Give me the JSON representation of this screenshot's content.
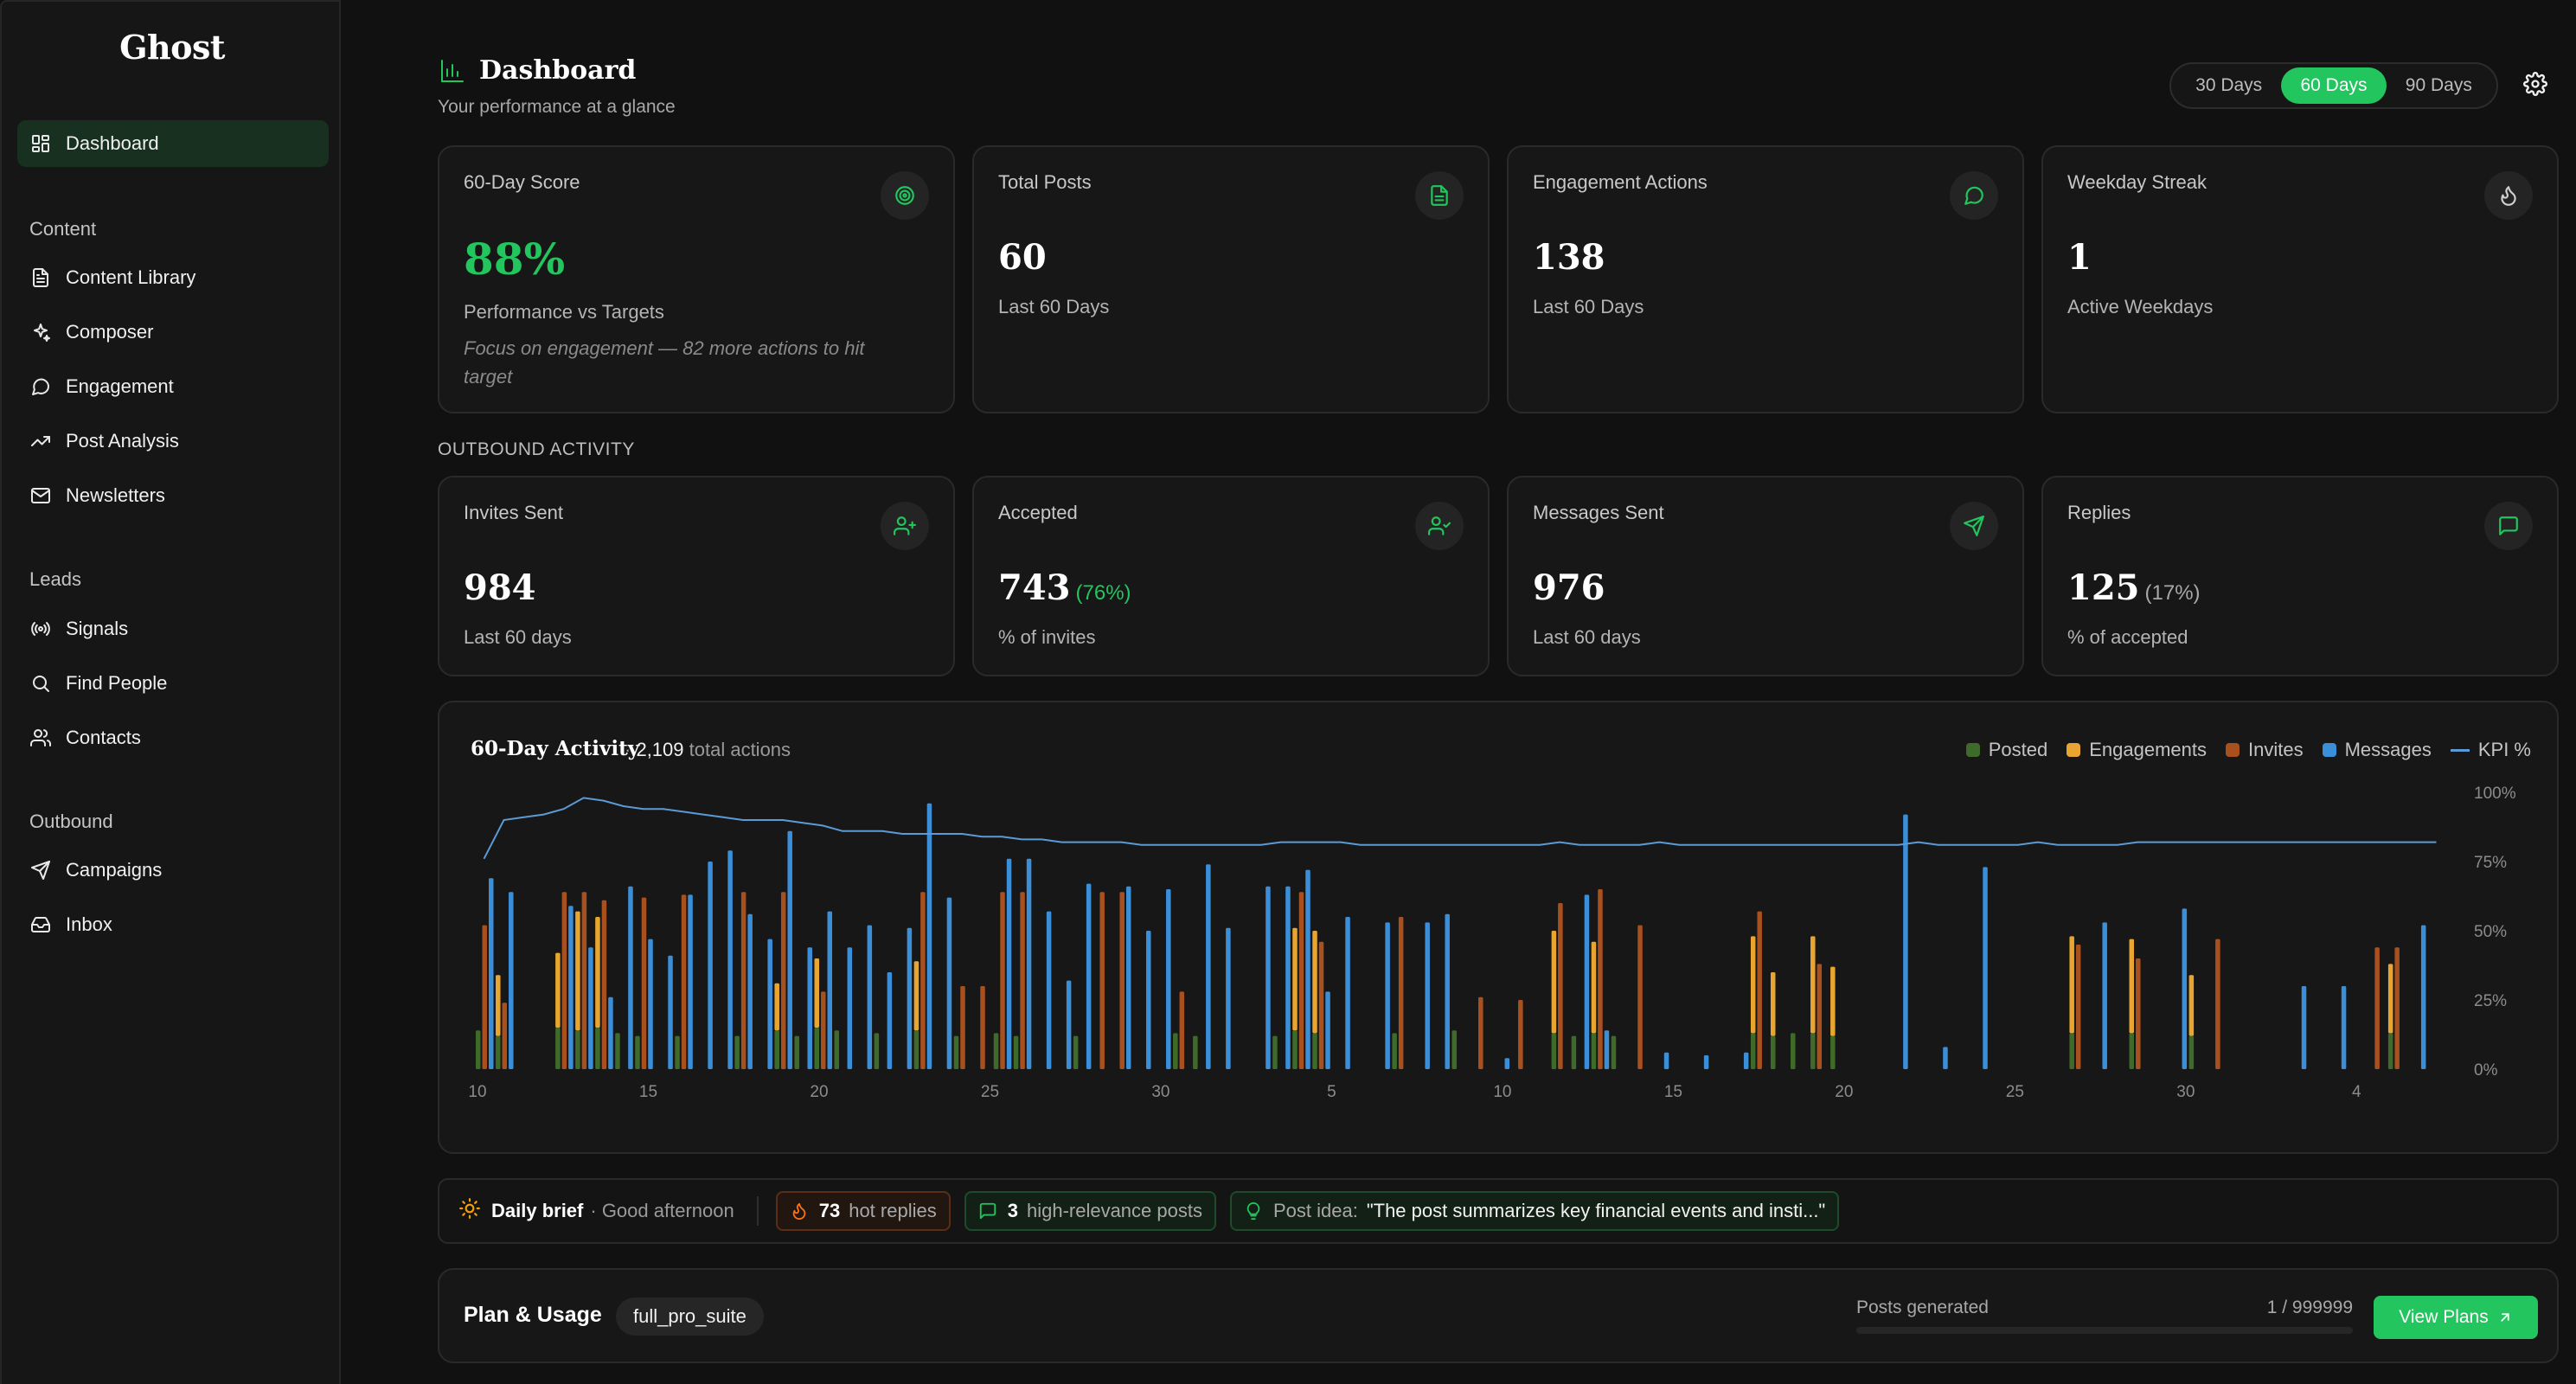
{
  "sidebar": {
    "brand": "Ghost",
    "dashboard": "Dashboard",
    "sections": {
      "content": "Content",
      "leads": "Leads",
      "outbound": "Outbound"
    },
    "content_items": [
      "Content Library",
      "Composer",
      "Engagement",
      "Post Analysis",
      "Newsletters"
    ],
    "leads_items": [
      "Signals",
      "Find People",
      "Contacts"
    ],
    "outbound_items": [
      "Campaigns",
      "Inbox"
    ]
  },
  "header": {
    "title": "Dashboard",
    "subtitle": "Your performance at a glance",
    "ranges": [
      "30 Days",
      "60 Days",
      "90 Days"
    ],
    "active_range": "60 Days"
  },
  "stats": [
    {
      "label": "60-Day Score",
      "value": "88%",
      "sub": "Performance vs Targets",
      "note": "Focus on engagement — 82 more actions to hit target",
      "icon": "target-icon"
    },
    {
      "label": "Total Posts",
      "value": "60",
      "sub": "Last 60 Days",
      "icon": "document-icon"
    },
    {
      "label": "Engagement Actions",
      "value": "138",
      "sub": "Last 60 Days",
      "icon": "message-circle-icon"
    },
    {
      "label": "Weekday Streak",
      "value": "1",
      "sub": "Active Weekdays",
      "icon": "flame-icon"
    }
  ],
  "outbound": {
    "section_label": "OUTBOUND ACTIVITY",
    "cards": [
      {
        "label": "Invites Sent",
        "value": "984",
        "pct": "",
        "sub": "Last 60 days",
        "icon": "user-plus-icon"
      },
      {
        "label": "Accepted",
        "value": "743",
        "pct": "(76%)",
        "sub": "% of invites",
        "icon": "user-check-icon"
      },
      {
        "label": "Messages Sent",
        "value": "976",
        "pct": "",
        "sub": "Last 60 days",
        "icon": "send-icon"
      },
      {
        "label": "Replies",
        "value": "125",
        "pct": "(17%)",
        "sub": "% of accepted",
        "icon": "message-square-icon"
      }
    ]
  },
  "chart_meta": {
    "total_value": "2,109",
    "total_suffix": "total actions"
  },
  "chart_data": {
    "type": "bar",
    "title": "60-Day Activity",
    "colors": {
      "Posted": "#3f6b2a",
      "Engagements": "#e8a530",
      "Invites": "#a8501e",
      "Messages": "#3b8fd9",
      "KPI %": "#5b9bd5"
    },
    "x_tick_labels": [
      "10",
      "15",
      "20",
      "25",
      "30",
      "5",
      "10",
      "15",
      "20",
      "25",
      "30",
      "4"
    ],
    "y2_ticks": [
      "100%",
      "75%",
      "50%",
      "25%",
      "0%"
    ],
    "y2lim": [
      0,
      100
    ],
    "ylim": [
      0,
      100
    ],
    "legend": [
      "Posted",
      "Engagements",
      "Invites",
      "Messages",
      "KPI %"
    ],
    "legend_position": "top-right",
    "series": [
      {
        "name": "Posted",
        "values": [
          14,
          12,
          0,
          0,
          15,
          14,
          15,
          13,
          12,
          0,
          12,
          0,
          0,
          12,
          0,
          14,
          12,
          15,
          14,
          0,
          13,
          0,
          14,
          0,
          12,
          0,
          13,
          12,
          0,
          0,
          0,
          0,
          0,
          0,
          0,
          0,
          0,
          0,
          0,
          0,
          0,
          0,
          0,
          0,
          0,
          0,
          0,
          0,
          0,
          0,
          0,
          0,
          0,
          0,
          0,
          0,
          0,
          0,
          0,
          0,
          0,
          0,
          0,
          0,
          0,
          0,
          0,
          0,
          0,
          0,
          0,
          0,
          0,
          0,
          0,
          0,
          0,
          0,
          0,
          0,
          0,
          0,
          0,
          0,
          0,
          0,
          0,
          0,
          0,
          0,
          0,
          0,
          0,
          0,
          0,
          0,
          0,
          0,
          0
        ]
      },
      {
        "name": "Engagements",
        "values": [
          0,
          22,
          0,
          0,
          27,
          43,
          40,
          0,
          0,
          0,
          10,
          0,
          0,
          0,
          0,
          0,
          0,
          25,
          0,
          0,
          0,
          0,
          25,
          0,
          0,
          0,
          25,
          0,
          0,
          0,
          0,
          0,
          0,
          0,
          0,
          0,
          0,
          0,
          0,
          0,
          0,
          0,
          0,
          0,
          0,
          0,
          0,
          0,
          0,
          0,
          0,
          0,
          0,
          0,
          0,
          0,
          0,
          0,
          0,
          0,
          0,
          0,
          0,
          0,
          0,
          0,
          0,
          0,
          0,
          0,
          0,
          0,
          0,
          0,
          0,
          0,
          0,
          0,
          0,
          0,
          0,
          0,
          0,
          0,
          0,
          0,
          0,
          0,
          0,
          0,
          0,
          0,
          0,
          0,
          0,
          0,
          0,
          0,
          0
        ]
      },
      {
        "name": "Invites",
        "values": [
          52,
          24,
          0,
          0,
          64,
          64,
          61,
          0,
          62,
          0,
          63,
          0,
          0,
          64,
          0,
          64,
          0,
          28,
          0,
          0,
          0,
          0,
          0,
          0,
          0,
          0,
          0,
          0,
          0,
          0,
          0,
          0,
          0,
          0,
          0,
          0,
          0,
          0,
          0,
          0,
          0,
          0,
          0,
          0,
          0,
          0,
          0,
          0,
          0,
          0,
          0,
          0,
          0,
          0,
          0,
          0,
          0,
          0,
          0,
          0,
          0,
          0,
          0,
          0,
          0,
          0,
          0,
          0,
          0,
          0,
          0,
          0,
          0,
          0,
          0,
          0,
          0,
          0,
          0,
          0,
          0,
          0,
          0,
          0,
          0,
          0,
          0,
          0,
          0,
          0,
          0,
          0,
          0,
          0,
          0,
          0,
          0,
          0,
          0
        ]
      },
      {
        "name": "Messages",
        "values": [
          69,
          64,
          44,
          60,
          59,
          44,
          26,
          66,
          47,
          41,
          63,
          75,
          79,
          56,
          47,
          86,
          44,
          57,
          44,
          52,
          35,
          51,
          96,
          62,
          0,
          0,
          0,
          0,
          0,
          0,
          0,
          0,
          0,
          0,
          0,
          0,
          0,
          0,
          0,
          0,
          0,
          0,
          0,
          0,
          0,
          0,
          0,
          0,
          0,
          0,
          0,
          0,
          0,
          0,
          0,
          0,
          0,
          0,
          0,
          0,
          0,
          0,
          0,
          0,
          0,
          0,
          0,
          0,
          0,
          0,
          0,
          0,
          0,
          0,
          0,
          0,
          0,
          0,
          0,
          0,
          0,
          0,
          0,
          0,
          0,
          0,
          0,
          0,
          0,
          0,
          0,
          0,
          0,
          0,
          0,
          0,
          0,
          0,
          0
        ]
      },
      {
        "name": "KPI %",
        "values": [
          76,
          90,
          91,
          92,
          94,
          98,
          97,
          95,
          94,
          94,
          93,
          92,
          91,
          90,
          90,
          90,
          89,
          88,
          86,
          86,
          86,
          85,
          85,
          85,
          85,
          84,
          84,
          83,
          83,
          82,
          82,
          82,
          82,
          81,
          81,
          81,
          81,
          81,
          81,
          81,
          82,
          82,
          82,
          82,
          81,
          81,
          81,
          81,
          81,
          81,
          81,
          81,
          81,
          81,
          82,
          81,
          81,
          81,
          81,
          82,
          81,
          81,
          81,
          81,
          81,
          81,
          81,
          81,
          81,
          81,
          81,
          81,
          82,
          81,
          81,
          81,
          81,
          81,
          82,
          81,
          81,
          81,
          81,
          82,
          82,
          82,
          82,
          82,
          82,
          82,
          82,
          82,
          82,
          82,
          82,
          82,
          82,
          82,
          82
        ]
      }
    ],
    "bars": [
      [
        14,
        0,
        52,
        69
      ],
      [
        12,
        22,
        24,
        64
      ],
      [
        0,
        0,
        0,
        0
      ],
      [
        0,
        0,
        0,
        0
      ],
      [
        15,
        27,
        64,
        59
      ],
      [
        14,
        43,
        64,
        44
      ],
      [
        15,
        40,
        61,
        26
      ],
      [
        13,
        0,
        0,
        66
      ],
      [
        12,
        0,
        62,
        47
      ],
      [
        0,
        0,
        0,
        41
      ],
      [
        12,
        0,
        63,
        63
      ],
      [
        0,
        0,
        0,
        75
      ],
      [
        0,
        0,
        0,
        79
      ],
      [
        12,
        0,
        64,
        56
      ],
      [
        0,
        0,
        0,
        47
      ],
      [
        14,
        17,
        64,
        86
      ],
      [
        12,
        0,
        0,
        44
      ],
      [
        15,
        25,
        28,
        57
      ],
      [
        14,
        0,
        0,
        44
      ],
      [
        0,
        0,
        0,
        52
      ],
      [
        13,
        0,
        0,
        35
      ],
      [
        0,
        0,
        0,
        51
      ],
      [
        14,
        25,
        64,
        96
      ],
      [
        0,
        0,
        0,
        62
      ],
      [
        12,
        0,
        30,
        0
      ],
      [
        0,
        0,
        30,
        0
      ],
      [
        13,
        0,
        64,
        76
      ],
      [
        12,
        0,
        64,
        76
      ],
      [
        0,
        0,
        0,
        57
      ],
      [
        0,
        0,
        0,
        32
      ],
      [
        12,
        0,
        0,
        67
      ],
      [
        0,
        0,
        64,
        0
      ],
      [
        0,
        0,
        64,
        66
      ],
      [
        0,
        0,
        0,
        50
      ],
      [
        0,
        0,
        0,
        65
      ],
      [
        13,
        0,
        28,
        0
      ],
      [
        12,
        0,
        0,
        74
      ],
      [
        0,
        0,
        0,
        51
      ],
      [
        0,
        0,
        0,
        0
      ],
      [
        0,
        0,
        0,
        66
      ],
      [
        12,
        0,
        0,
        66
      ],
      [
        14,
        37,
        64,
        72
      ],
      [
        13,
        37,
        46,
        28
      ],
      [
        0,
        0,
        0,
        55
      ],
      [
        0,
        0,
        0,
        0
      ],
      [
        0,
        0,
        0,
        53
      ],
      [
        13,
        0,
        55,
        0
      ],
      [
        0,
        0,
        0,
        53
      ],
      [
        0,
        0,
        0,
        56
      ],
      [
        14,
        0,
        0,
        0
      ],
      [
        0,
        0,
        26,
        0
      ],
      [
        0,
        0,
        0,
        4
      ],
      [
        0,
        0,
        25,
        0
      ],
      [
        0,
        0,
        0,
        0
      ],
      [
        13,
        37,
        60,
        0
      ],
      [
        12,
        0,
        0,
        63
      ],
      [
        13,
        33,
        65,
        14
      ],
      [
        12,
        0,
        0,
        0
      ],
      [
        0,
        0,
        52,
        0
      ],
      [
        0,
        0,
        0,
        6
      ],
      [
        0,
        0,
        0,
        0
      ],
      [
        0,
        0,
        0,
        5
      ],
      [
        0,
        0,
        0,
        0
      ],
      [
        0,
        0,
        0,
        6
      ],
      [
        13,
        35,
        57,
        0
      ],
      [
        12,
        23,
        0,
        0
      ],
      [
        13,
        0,
        0,
        0
      ],
      [
        13,
        35,
        38,
        0
      ],
      [
        12,
        25,
        0,
        0
      ],
      [
        0,
        0,
        0,
        0
      ],
      [
        0,
        0,
        0,
        0
      ],
      [
        0,
        0,
        0,
        92
      ],
      [
        0,
        0,
        0,
        0
      ],
      [
        0,
        0,
        0,
        8
      ],
      [
        0,
        0,
        0,
        0
      ],
      [
        0,
        0,
        0,
        73
      ],
      [
        0,
        0,
        0,
        0
      ],
      [
        0,
        0,
        0,
        0
      ],
      [
        0,
        0,
        0,
        0
      ],
      [
        0,
        0,
        0,
        0
      ],
      [
        13,
        35,
        45,
        0
      ],
      [
        0,
        0,
        0,
        53
      ],
      [
        0,
        0,
        0,
        0
      ],
      [
        13,
        34,
        40,
        0
      ],
      [
        0,
        0,
        0,
        0
      ],
      [
        0,
        0,
        0,
        58
      ],
      [
        12,
        22,
        0,
        0
      ],
      [
        0,
        0,
        47,
        0
      ],
      [
        0,
        0,
        0,
        0
      ],
      [
        0,
        0,
        0,
        0
      ],
      [
        0,
        0,
        0,
        0
      ],
      [
        0,
        0,
        0,
        30
      ],
      [
        0,
        0,
        0,
        0
      ],
      [
        0,
        0,
        0,
        30
      ],
      [
        0,
        0,
        0,
        0
      ],
      [
        0,
        0,
        44,
        0
      ],
      [
        13,
        25,
        44,
        0
      ],
      [
        0,
        0,
        0,
        52
      ],
      [
        0,
        0,
        0,
        0
      ]
    ]
  },
  "brief": {
    "title": "Daily brief",
    "greeting": "· Good afternoon",
    "hot_count": "73",
    "hot_label": "hot replies",
    "rel_count": "3",
    "rel_label": "high-relevance posts",
    "idea_label": "Post idea:",
    "idea_text": "\"The post summarizes key financial events and insti...\""
  },
  "plan": {
    "title": "Plan & Usage",
    "badge": "full_pro_suite",
    "usage_label": "Posts generated",
    "usage_value": "1 / 999999",
    "usage_fraction": 1e-06,
    "button": "View Plans"
  }
}
